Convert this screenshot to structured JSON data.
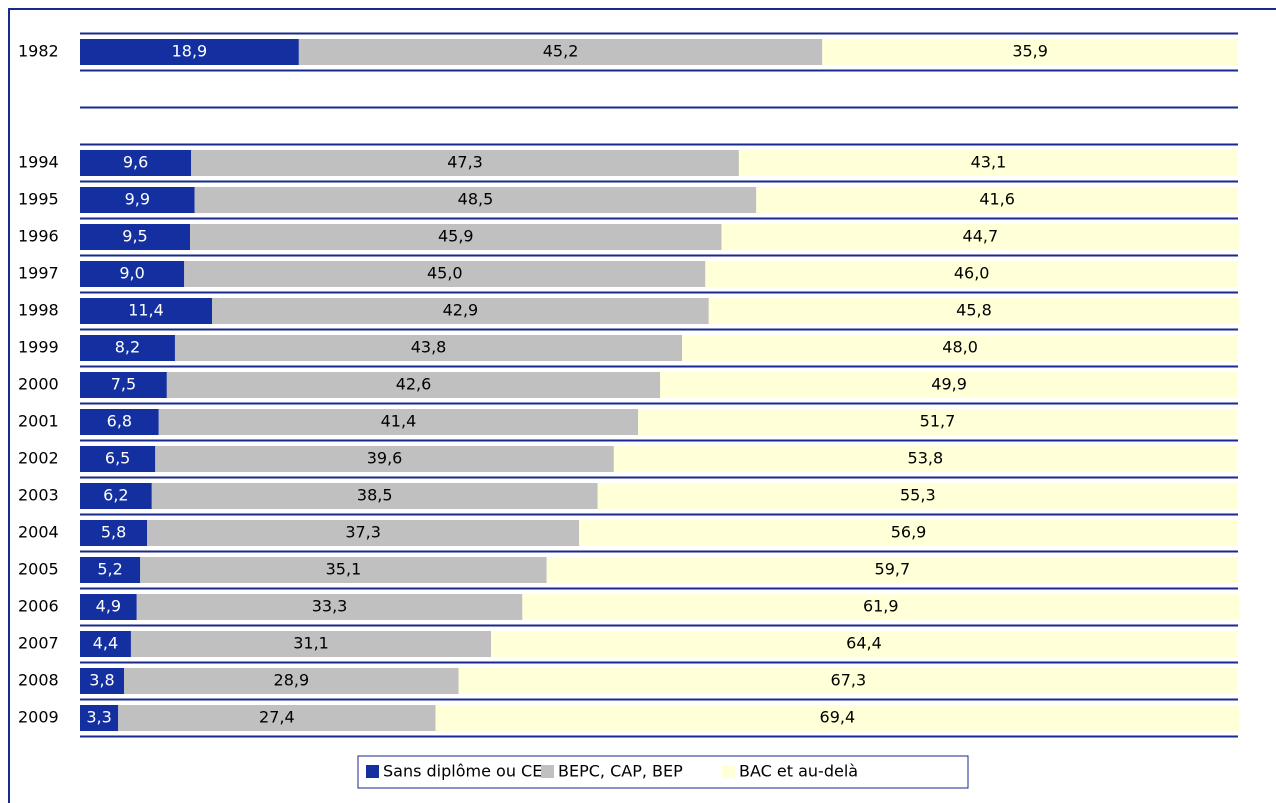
{
  "chart_data": {
    "type": "bar",
    "orientation": "horizontal",
    "stacked": true,
    "categories": [
      "1982",
      null,
      null,
      "1994",
      "1995",
      "1996",
      "1997",
      "1998",
      "1999",
      "2000",
      "2001",
      "2002",
      "2003",
      "2004",
      "2005",
      "2006",
      "2007",
      "2008",
      "2009"
    ],
    "xlim": [
      0,
      100
    ],
    "series": [
      {
        "name": "Sans diplôme ou CEP",
        "color": "#1430a0",
        "values": [
          18.9,
          null,
          null,
          9.6,
          9.9,
          9.5,
          9.0,
          11.4,
          8.2,
          7.5,
          6.8,
          6.5,
          6.2,
          5.8,
          5.2,
          4.9,
          4.4,
          3.8,
          3.3
        ],
        "value_labels": [
          "18,9",
          null,
          null,
          "9,6",
          "9,9",
          "9,5",
          "9,0",
          "11,4",
          "8,2",
          "7,5",
          "6,8",
          "6,5",
          "6,2",
          "5,8",
          "5,2",
          "4,9",
          "4,4",
          "3,8",
          "3,3"
        ]
      },
      {
        "name": "BEPC, CAP, BEP",
        "color": "#c0c0c0",
        "values": [
          45.2,
          null,
          null,
          47.3,
          48.5,
          45.9,
          45.0,
          42.9,
          43.8,
          42.6,
          41.4,
          39.6,
          38.5,
          37.3,
          35.1,
          33.3,
          31.1,
          28.9,
          27.4
        ],
        "value_labels": [
          "45,2",
          null,
          null,
          "47,3",
          "48,5",
          "45,9",
          "45,0",
          "42,9",
          "43,8",
          "42,6",
          "41,4",
          "39,6",
          "38,5",
          "37,3",
          "35,1",
          "33,3",
          "31,1",
          "28,9",
          "27,4"
        ]
      },
      {
        "name": "BAC et au-delà",
        "color": "#ffffd8",
        "values": [
          35.9,
          null,
          null,
          43.1,
          41.6,
          44.7,
          46.0,
          45.8,
          48.0,
          49.9,
          51.7,
          53.8,
          55.3,
          56.9,
          59.7,
          61.9,
          64.4,
          67.3,
          69.4
        ],
        "value_labels": [
          "35,9",
          null,
          null,
          "43,1",
          "41,6",
          "44,7",
          "46,0",
          "45,8",
          "48,0",
          "49,9",
          "51,7",
          "53,8",
          "55,3",
          "56,9",
          "59,7",
          "61,9",
          "64,4",
          "67,3",
          "69,4"
        ]
      }
    ],
    "legend": "bottom"
  }
}
